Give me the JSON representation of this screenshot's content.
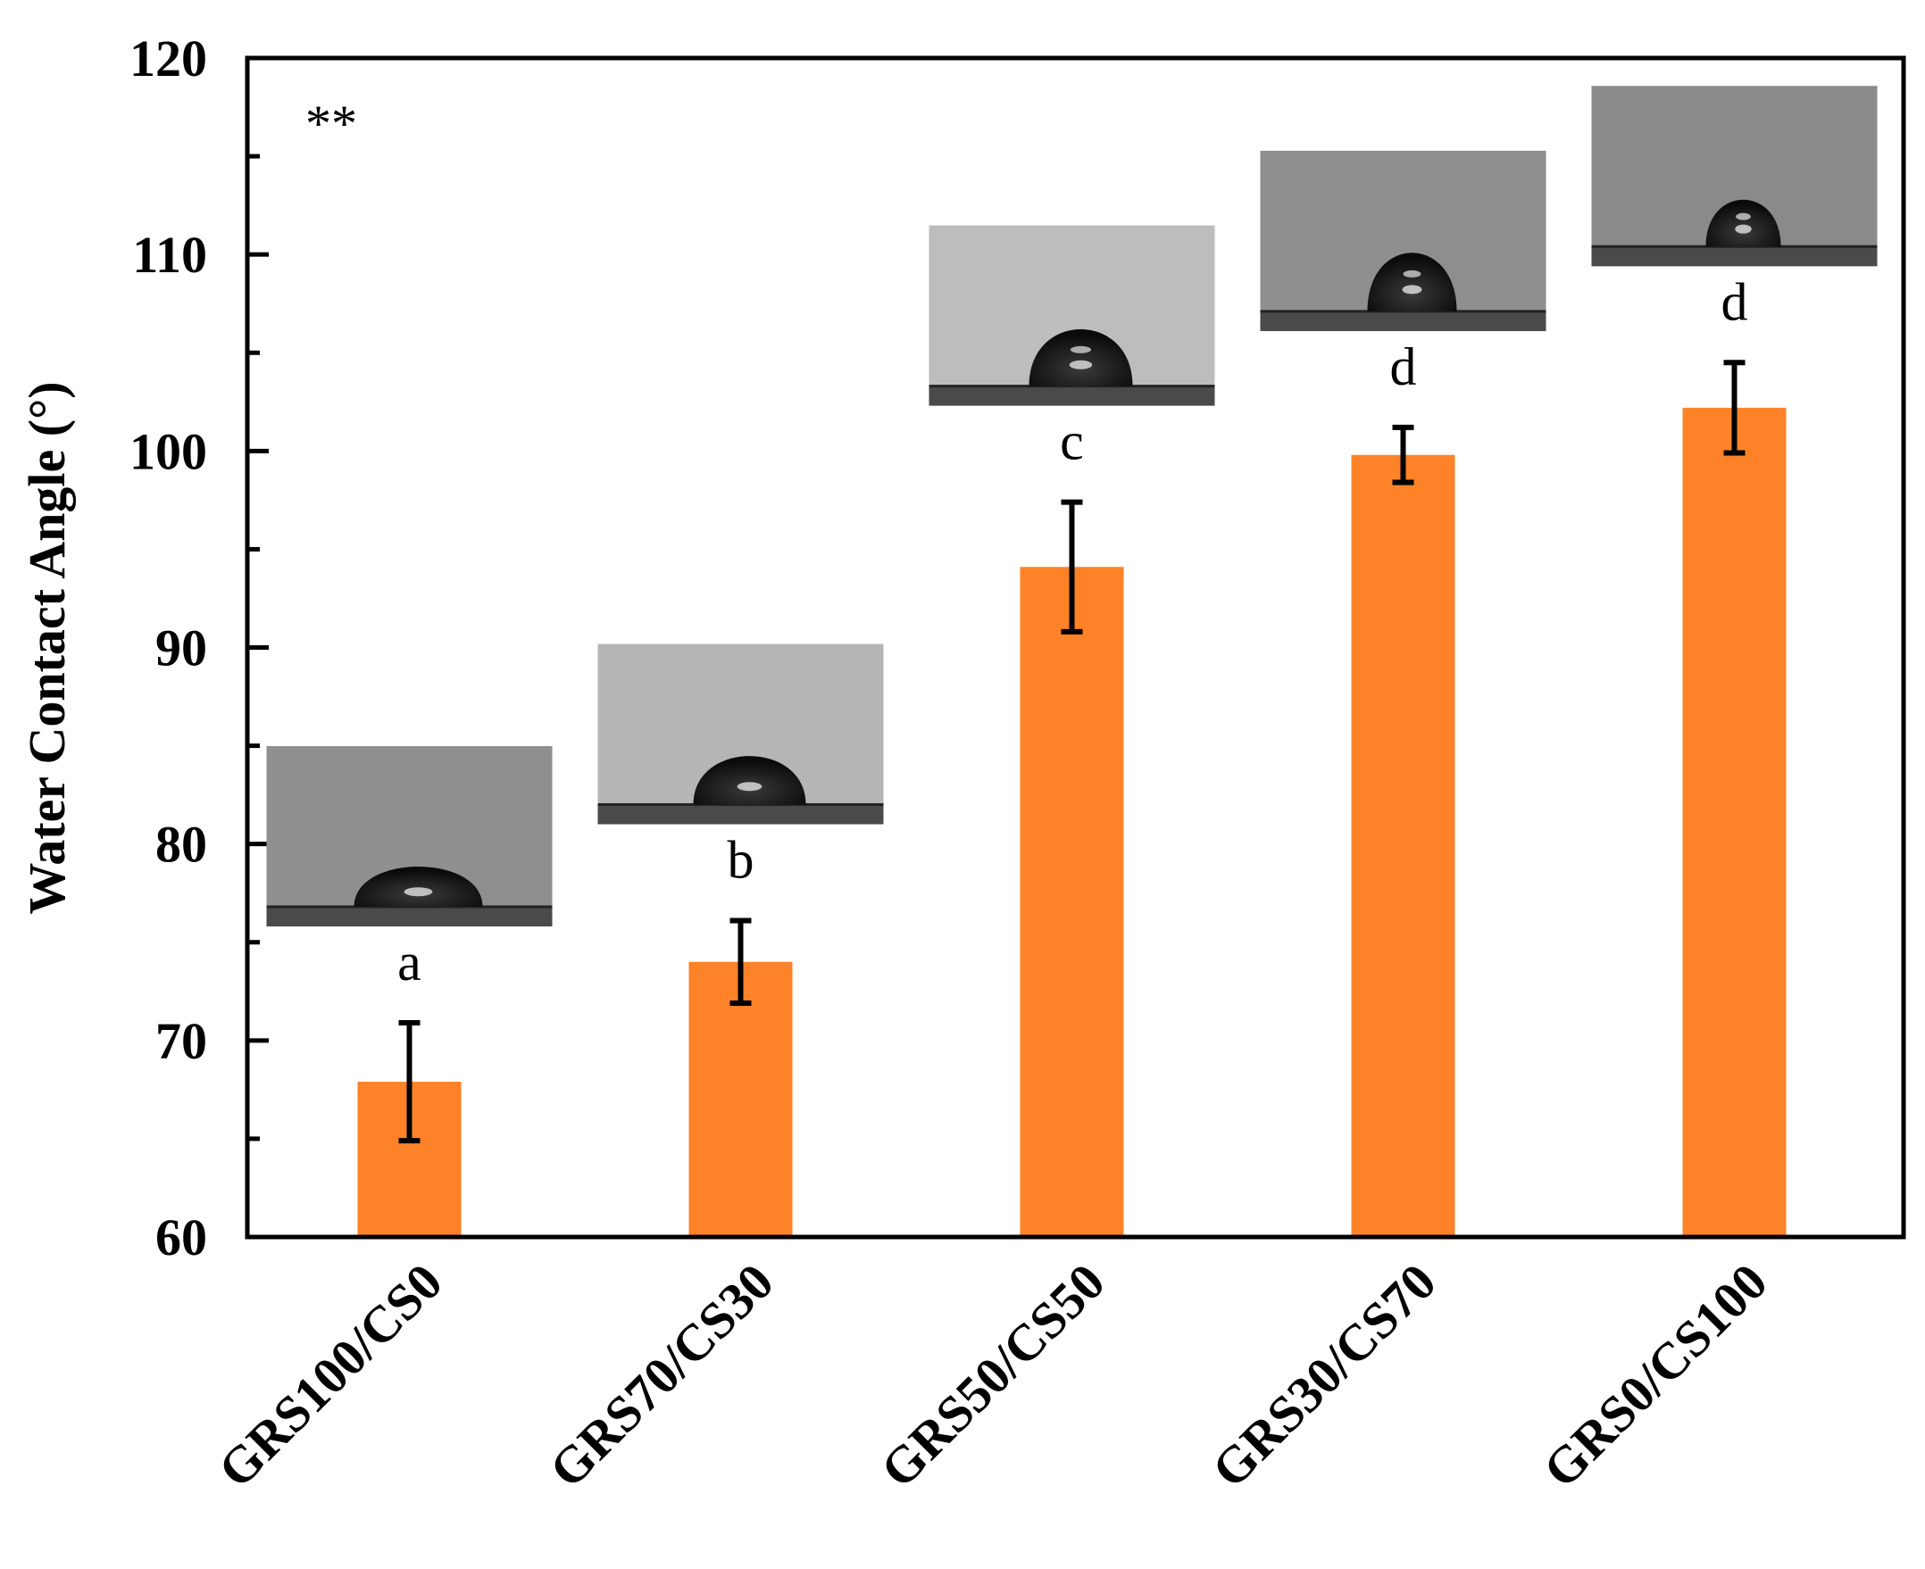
{
  "chart_data": {
    "type": "bar",
    "title": "",
    "xlabel": "",
    "ylabel": "Water Contact Angle (°)",
    "ylim": [
      60,
      120
    ],
    "yticks": [
      60,
      70,
      80,
      90,
      100,
      110,
      120
    ],
    "categories": [
      "GRS100/CS0",
      "GRS70/CS30",
      "GRS50/CS50",
      "GRS30/CS70",
      "GRS0/CS100"
    ],
    "values": [
      67.9,
      74.0,
      94.1,
      99.8,
      102.2
    ],
    "errors": [
      3.0,
      2.1,
      3.3,
      1.4,
      2.3
    ],
    "significance_letters": [
      "a",
      "b",
      "c",
      "d",
      "d"
    ],
    "corner_annotation": "**",
    "bar_color": "#fd8228",
    "inset_images": "droplet photographs above each bar"
  }
}
